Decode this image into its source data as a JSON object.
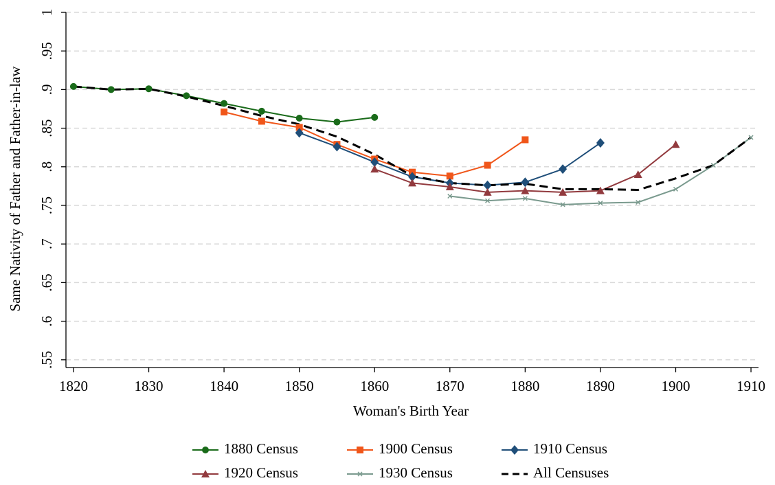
{
  "chart_data": {
    "type": "line",
    "xlabel": "Woman's Birth Year",
    "ylabel": "Same Nativity of Father and Father-in-law",
    "x": [
      1820,
      1825,
      1830,
      1835,
      1840,
      1845,
      1850,
      1855,
      1860,
      1865,
      1870,
      1875,
      1880,
      1885,
      1890,
      1895,
      1900,
      1905,
      1910
    ],
    "xlim": [
      1819,
      1911
    ],
    "xticks": [
      1820,
      1830,
      1840,
      1850,
      1860,
      1870,
      1880,
      1890,
      1900,
      1910
    ],
    "ylim": [
      0.54,
      1.0
    ],
    "yticks": [
      {
        "value": 0.55,
        "label": ".55"
      },
      {
        "value": 0.6,
        "label": ".6"
      },
      {
        "value": 0.65,
        "label": ".65"
      },
      {
        "value": 0.7,
        "label": ".7"
      },
      {
        "value": 0.75,
        "label": ".75"
      },
      {
        "value": 0.8,
        "label": ".8"
      },
      {
        "value": 0.85,
        "label": ".85"
      },
      {
        "value": 0.9,
        "label": ".9"
      },
      {
        "value": 0.95,
        "label": ".95"
      },
      1
    ],
    "grid": true,
    "legend": "bottom",
    "series": [
      {
        "name": "1880 Census",
        "color": "#1a6b1a",
        "marker": "circle",
        "values": [
          0.904,
          0.9,
          0.901,
          0.892,
          0.882,
          0.872,
          0.863,
          0.858,
          0.864,
          null,
          null,
          null,
          null,
          null,
          null,
          null,
          null,
          null,
          null
        ]
      },
      {
        "name": "1900 Census",
        "color": "#f0561a",
        "marker": "square",
        "values": [
          null,
          null,
          null,
          null,
          0.871,
          0.859,
          0.851,
          0.829,
          0.81,
          0.793,
          0.788,
          0.802,
          0.835,
          null,
          null,
          null,
          null,
          null,
          null
        ]
      },
      {
        "name": "1910 Census",
        "color": "#1f4e79",
        "marker": "diamond",
        "values": [
          null,
          null,
          null,
          null,
          null,
          null,
          0.844,
          0.826,
          0.806,
          0.787,
          0.779,
          0.776,
          0.78,
          0.797,
          0.831,
          null,
          null,
          null,
          null
        ]
      },
      {
        "name": "1920 Census",
        "color": "#923a3e",
        "marker": "triangle",
        "values": [
          null,
          null,
          null,
          null,
          null,
          null,
          null,
          null,
          0.797,
          0.779,
          0.774,
          0.767,
          0.769,
          0.767,
          0.769,
          0.79,
          0.829,
          null,
          null
        ]
      },
      {
        "name": "1930 Census",
        "color": "#7a9a8e",
        "marker": "x",
        "values": [
          null,
          null,
          null,
          null,
          null,
          null,
          null,
          null,
          null,
          null,
          0.762,
          0.756,
          0.759,
          0.751,
          0.753,
          0.754,
          0.771,
          0.802,
          0.838
        ]
      },
      {
        "name": "All Censuses",
        "color": "#000000",
        "dash": true,
        "values": [
          0.904,
          0.9,
          0.901,
          0.891,
          0.879,
          0.866,
          0.855,
          0.839,
          0.816,
          0.788,
          0.779,
          0.776,
          0.778,
          0.771,
          0.771,
          0.77,
          0.785,
          0.802,
          0.838
        ]
      }
    ]
  }
}
